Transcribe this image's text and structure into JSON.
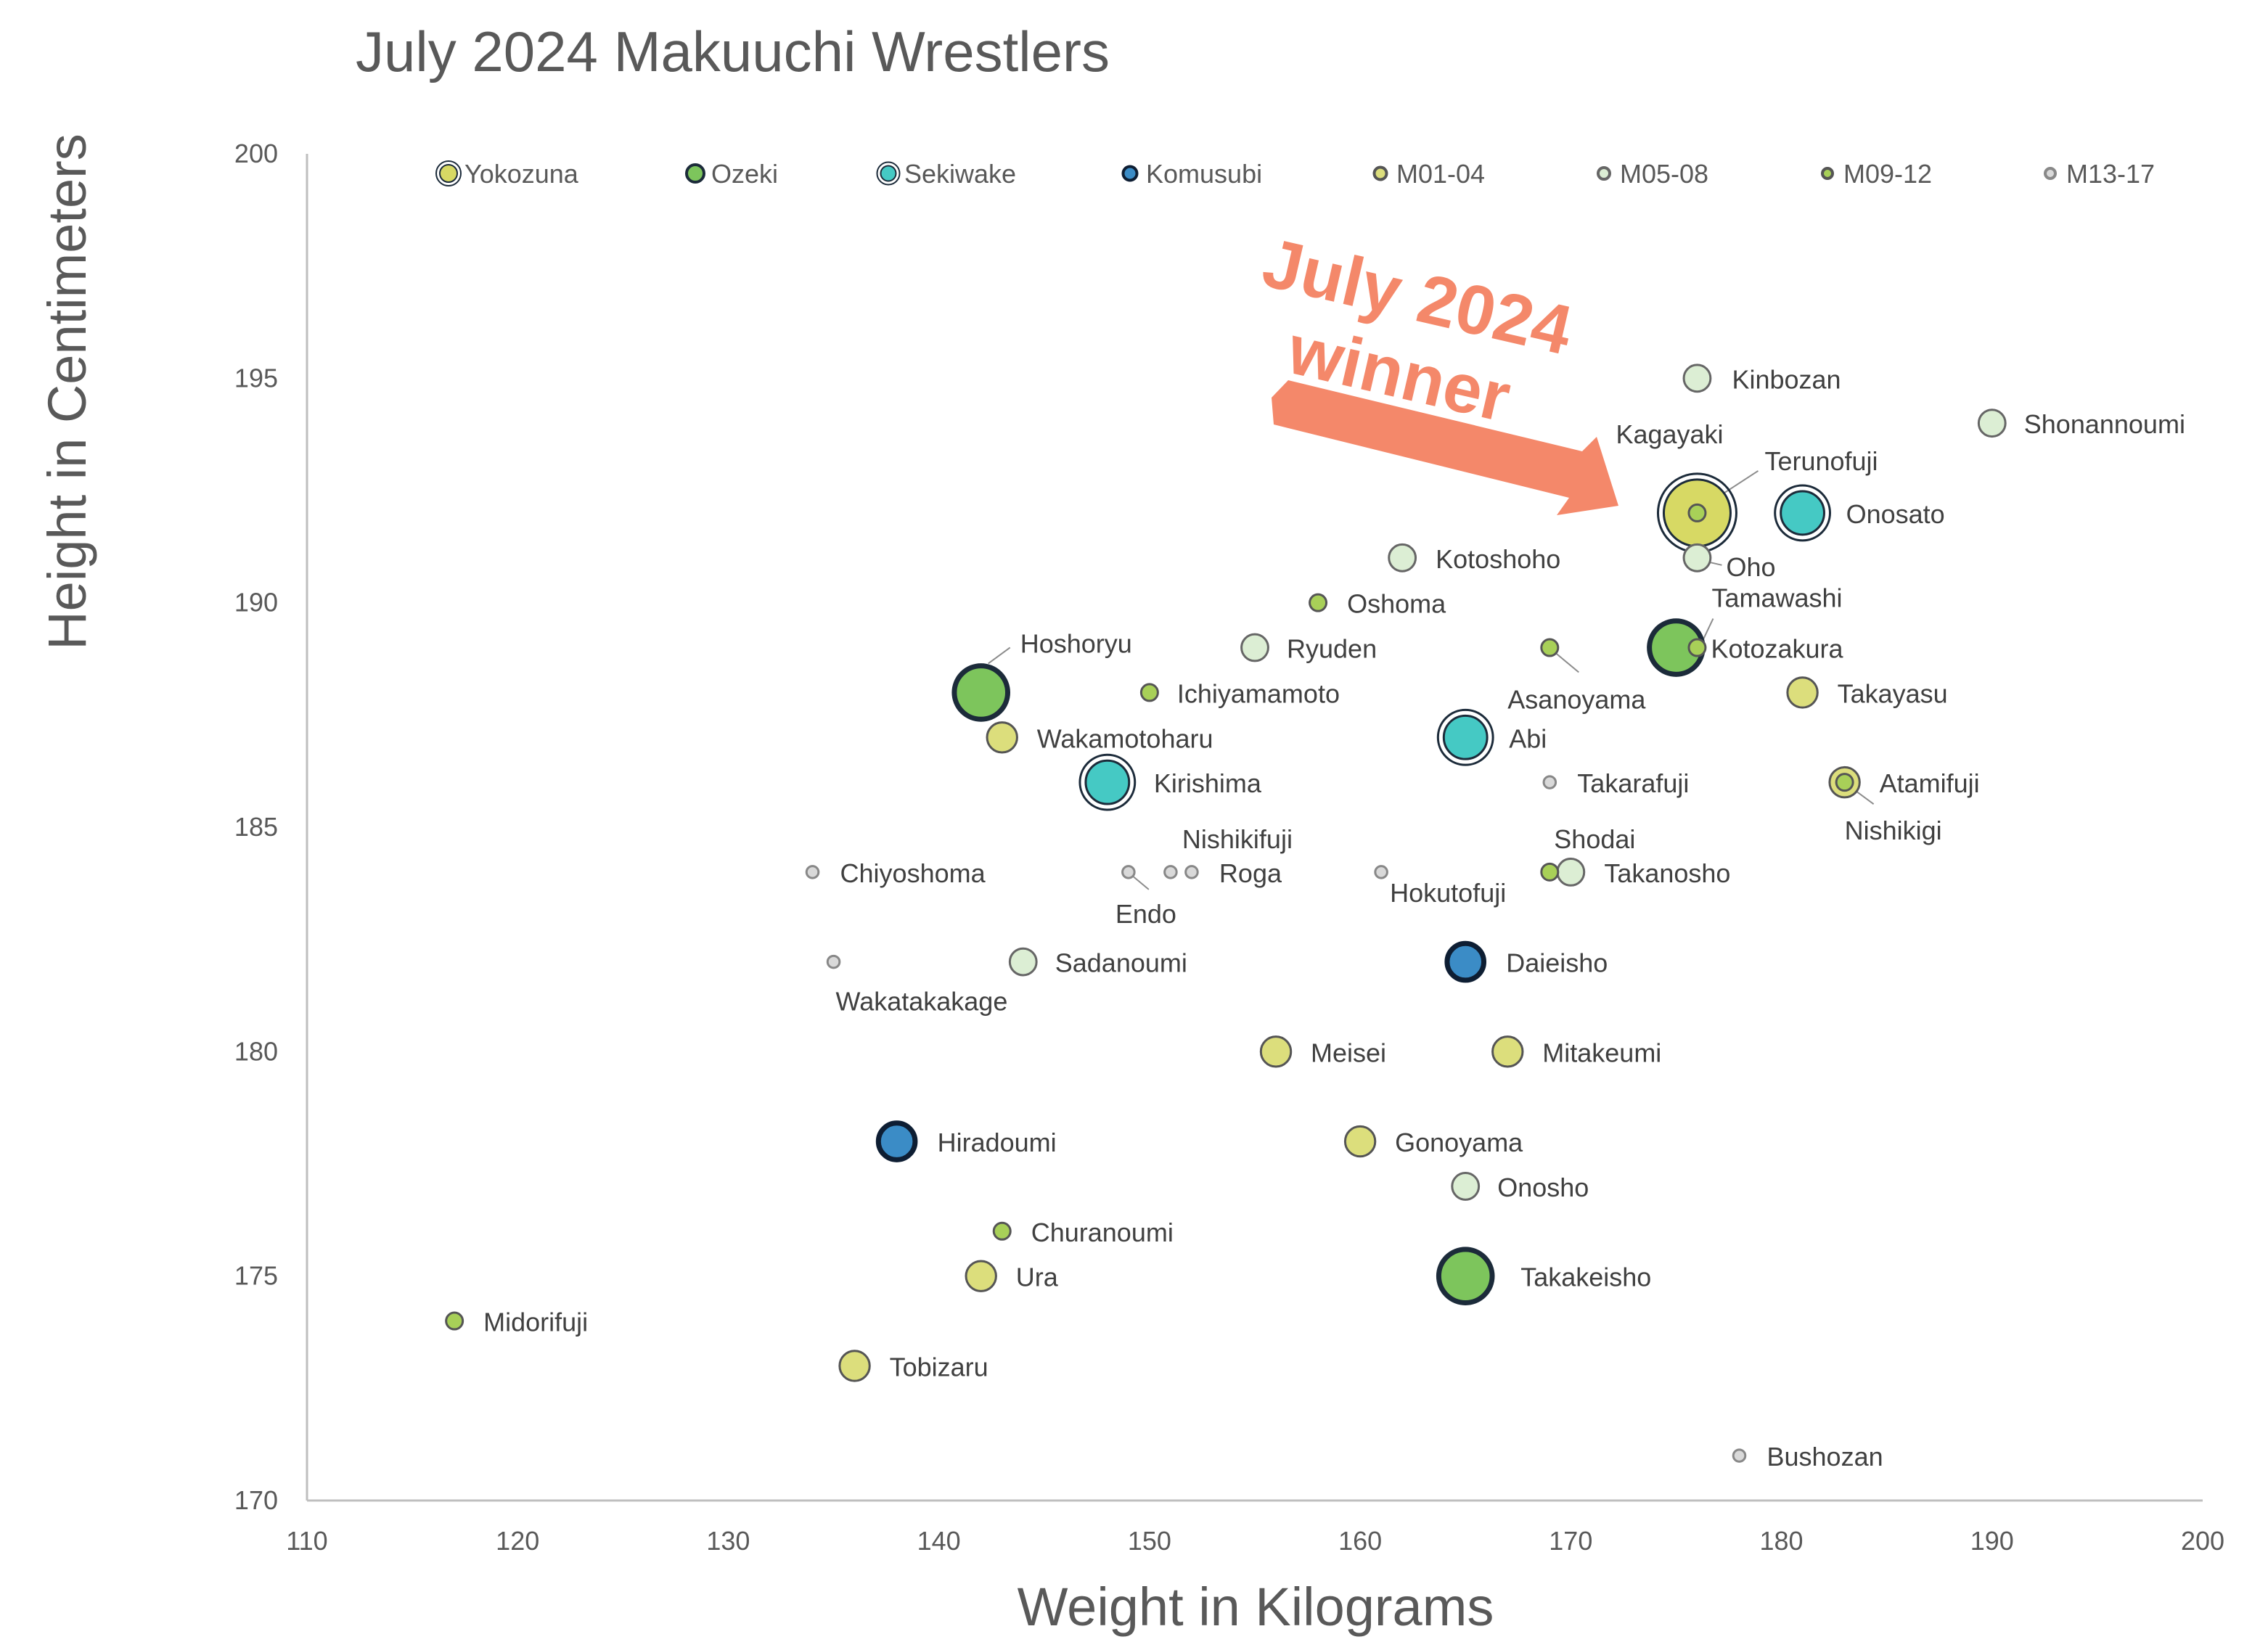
{
  "chart_data": {
    "type": "scatter",
    "title": "July 2024 Makuuchi Wrestlers",
    "xlabel": "Weight in Kilograms",
    "ylabel": "Height in Centimeters",
    "xlim": [
      110,
      200
    ],
    "ylim": [
      170,
      200
    ],
    "x_ticks": [
      "110",
      "120",
      "130",
      "140",
      "150",
      "160",
      "170",
      "180",
      "190",
      "200"
    ],
    "y_ticks": [
      "170",
      "175",
      "180",
      "185",
      "190",
      "195",
      "200"
    ],
    "grid": false,
    "legend_position": "top",
    "annotation": {
      "text": [
        "July 2024",
        "winner"
      ],
      "points_to": "Terunofuji",
      "color": "#F4886A"
    },
    "series": [
      {
        "name": "Yokozuna",
        "fill": "#D7D964",
        "stroke": "#1C2B3A",
        "ring": true,
        "size": 10,
        "points": [
          {
            "label": "Terunofuji",
            "x": 176,
            "y": 192
          }
        ]
      },
      {
        "name": "Ozeki",
        "fill": "#7DC55C",
        "stroke": "#1C2B3A",
        "ring": false,
        "size": 8,
        "points": [
          {
            "label": "Hoshoryu",
            "x": 142,
            "y": 188
          },
          {
            "label": "Kotozakura",
            "x": 175,
            "y": 189
          },
          {
            "label": "Takakeisho",
            "x": 165,
            "y": 175
          }
        ]
      },
      {
        "name": "Sekiwake",
        "fill": "#45C9C4",
        "stroke": "#1C2B3A",
        "ring": true,
        "size": 6.5,
        "points": [
          {
            "label": "Onosato",
            "x": 181,
            "y": 192
          },
          {
            "label": "Abi",
            "x": 165,
            "y": 187
          },
          {
            "label": "Kirishima",
            "x": 148,
            "y": 186
          }
        ]
      },
      {
        "name": "Komusubi",
        "fill": "#3B8CC6",
        "stroke": "#0E1E33",
        "ring": false,
        "size": 5.5,
        "points": [
          {
            "label": "Daieisho",
            "x": 165,
            "y": 182
          },
          {
            "label": "Hiradoumi",
            "x": 138,
            "y": 178
          }
        ]
      },
      {
        "name": "M01-04",
        "fill": "#DCDE7C",
        "stroke": "#555555",
        "ring": false,
        "size": 4.5,
        "points": [
          {
            "label": "Wakamotoharu",
            "x": 143,
            "y": 187
          },
          {
            "label": "Takayasu",
            "x": 181,
            "y": 188
          },
          {
            "label": "Atamifuji",
            "x": 183,
            "y": 186
          },
          {
            "label": "Meisei",
            "x": 156,
            "y": 180
          },
          {
            "label": "Mitakeumi",
            "x": 167,
            "y": 180
          },
          {
            "label": "Gonoyama",
            "x": 160,
            "y": 178
          },
          {
            "label": "Ura",
            "x": 142,
            "y": 175
          },
          {
            "label": "Tobizaru",
            "x": 136,
            "y": 173
          }
        ]
      },
      {
        "name": "M05-08",
        "fill": "#DCEED4",
        "stroke": "#666666",
        "ring": false,
        "size": 4,
        "points": [
          {
            "label": "Kinbozan",
            "x": 176,
            "y": 195
          },
          {
            "label": "Shonannoumi",
            "x": 190,
            "y": 194
          },
          {
            "label": "Oho",
            "x": 176,
            "y": 191
          },
          {
            "label": "Kotoshoho",
            "x": 162,
            "y": 191
          },
          {
            "label": "Ryuden",
            "x": 155,
            "y": 189
          },
          {
            "label": "Takanosho",
            "x": 170,
            "y": 184
          },
          {
            "label": "Sadanoumi",
            "x": 144,
            "y": 182
          },
          {
            "label": "Onosho",
            "x": 165,
            "y": 177
          }
        ]
      },
      {
        "name": "M09-12",
        "fill": "#A8D058",
        "stroke": "#555555",
        "ring": false,
        "size": 2.5,
        "points": [
          {
            "label": "Kagayaki",
            "x": 176,
            "y": 192
          },
          {
            "label": "Tamawashi",
            "x": 176,
            "y": 189
          },
          {
            "label": "Oshoma",
            "x": 158,
            "y": 190
          },
          {
            "label": "Asanoyama",
            "x": 169,
            "y": 189
          },
          {
            "label": "Ichiyamamoto",
            "x": 150,
            "y": 188
          },
          {
            "label": "Nishikigi",
            "x": 183,
            "y": 186
          },
          {
            "label": "Shodai",
            "x": 169,
            "y": 184
          },
          {
            "label": "Churanoumi",
            "x": 143,
            "y": 176
          },
          {
            "label": "Midorifuji",
            "x": 117,
            "y": 174
          }
        ]
      },
      {
        "name": "M13-17",
        "fill": "#D9D9D9",
        "stroke": "#888888",
        "ring": false,
        "size": 1.8,
        "points": [
          {
            "label": "Takarafuji",
            "x": 169,
            "y": 186
          },
          {
            "label": "Chiyoshoma",
            "x": 134,
            "y": 184
          },
          {
            "label": "Endo",
            "x": 149,
            "y": 184
          },
          {
            "label": "Nishikifuji",
            "x": 151,
            "y": 184
          },
          {
            "label": "Roga",
            "x": 152,
            "y": 184
          },
          {
            "label": "Hokutofuji",
            "x": 161,
            "y": 184
          },
          {
            "label": "Wakatakakage",
            "x": 135,
            "y": 182
          },
          {
            "label": "Bushozan",
            "x": 178,
            "y": 171
          }
        ]
      }
    ]
  }
}
